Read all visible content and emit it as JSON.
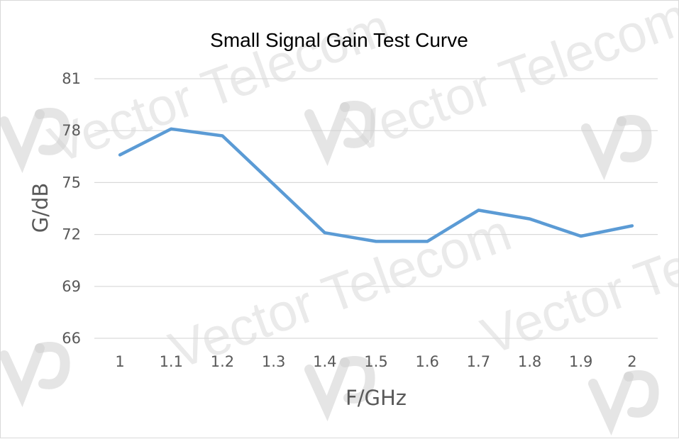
{
  "chart_data": {
    "type": "line",
    "title": "Small Signal Gain Test Curve",
    "xlabel": "F/GHz",
    "ylabel": "G/dB",
    "categories": [
      "1",
      "1.1",
      "1.2",
      "1.3",
      "1.4",
      "1.5",
      "1.6",
      "1.7",
      "1.8",
      "1.9",
      "2"
    ],
    "series": [
      {
        "values": [
          76.6,
          78.1,
          77.7,
          74.9,
          72.1,
          71.6,
          71.6,
          73.4,
          72.9,
          71.9,
          72.5
        ],
        "color": "#5b9bd5"
      }
    ],
    "ylim": [
      66,
      81
    ],
    "yticks": [
      "81",
      "78",
      "75",
      "72",
      "69",
      "66"
    ],
    "grid": "horizontal",
    "legend": "none"
  },
  "watermark": {
    "text": "Vector Telecom"
  }
}
